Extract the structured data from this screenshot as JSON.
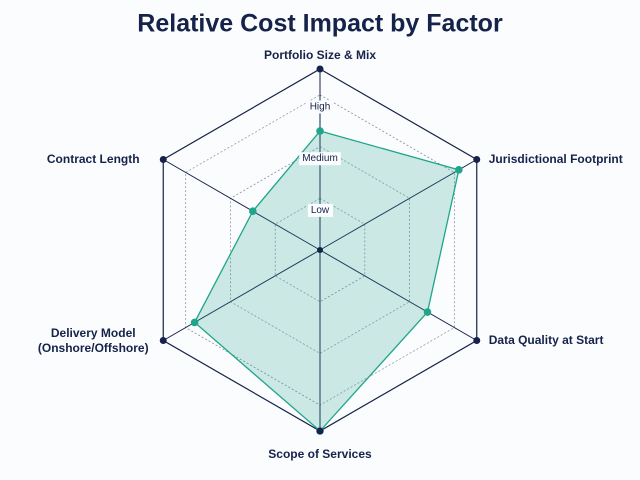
{
  "chart_data": {
    "type": "radar",
    "title": "Relative Cost Impact by Factor",
    "categories": [
      "Portfolio Size & Mix",
      "Jurisdictional Footprint",
      "Data Quality at Start",
      "Scope of Services",
      "Delivery Model (Onshore/Offshore)",
      "Contract Length"
    ],
    "values": [
      2.3,
      3.1,
      2.4,
      3.5,
      2.8,
      1.5
    ],
    "color": "#1fa58c",
    "rlim": [
      0,
      3.5
    ],
    "rticks": [
      {
        "value": 1,
        "label": "Low"
      },
      {
        "value": 2,
        "label": "Medium"
      },
      {
        "value": 3,
        "label": "High"
      }
    ],
    "grid": true
  }
}
